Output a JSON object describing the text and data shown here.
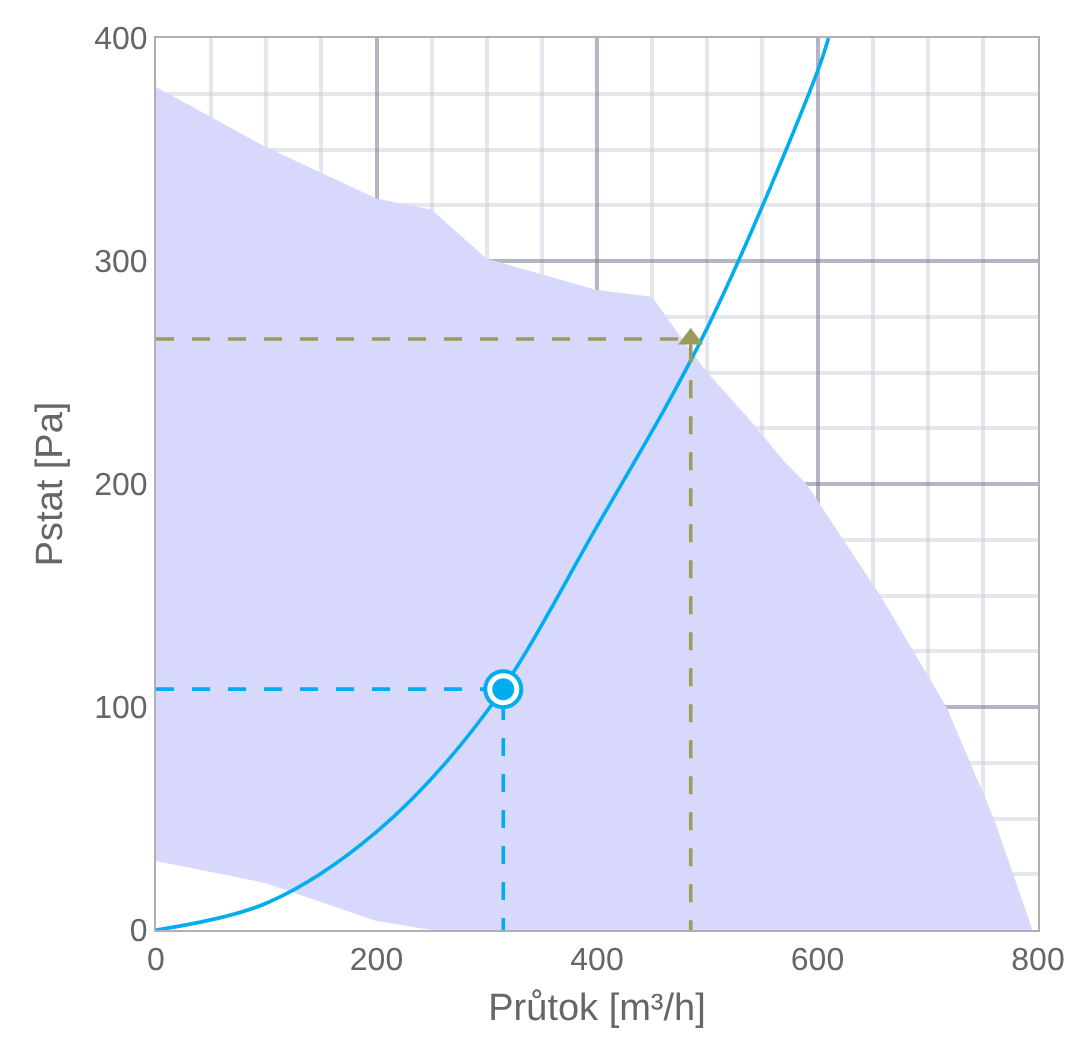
{
  "chart_data": {
    "type": "line",
    "xlabel": "Průtok [m³/h]",
    "ylabel": "Pstat [Pa]",
    "xlim": [
      0,
      800
    ],
    "ylim": [
      0,
      400
    ],
    "xticks": [
      0,
      {
        "value": 50,
        "label": null
      },
      {
        "value": 100,
        "label": null
      },
      {
        "value": 150,
        "label": null
      },
      200,
      {
        "value": 250,
        "label": null
      },
      {
        "value": 300,
        "label": null
      },
      {
        "value": 350,
        "label": null
      },
      400,
      {
        "value": 450,
        "label": null
      },
      {
        "value": 500,
        "label": null
      },
      {
        "value": 550,
        "label": null
      },
      600,
      {
        "value": 650,
        "label": null
      },
      {
        "value": 700,
        "label": null
      },
      {
        "value": 750,
        "label": null
      },
      800
    ],
    "yticks": [
      0,
      {
        "value": 25,
        "label": null
      },
      {
        "value": 50,
        "label": null
      },
      {
        "value": 75,
        "label": null
      },
      100,
      {
        "value": 125,
        "label": null
      },
      {
        "value": 150,
        "label": null
      },
      {
        "value": 175,
        "label": null
      },
      200,
      {
        "value": 225,
        "label": null
      },
      {
        "value": 250,
        "label": null
      },
      {
        "value": 275,
        "label": null
      },
      300,
      {
        "value": 325,
        "label": null
      },
      {
        "value": 350,
        "label": null
      },
      {
        "value": 375,
        "label": null
      },
      400
    ],
    "grid": true,
    "series": [
      {
        "type": "area",
        "color": "#d8d8fc",
        "x": [
          0,
          100,
          200,
          250,
          300,
          400,
          450,
          480,
          500,
          540,
          570,
          590,
          657,
          717,
          760,
          795
        ],
        "values": [
          378,
          351,
          328,
          323,
          301,
          287,
          284,
          263,
          250,
          228,
          210,
          200,
          150,
          100,
          50,
          0
        ]
      },
      {
        "type": "area",
        "color": "#ffffff",
        "x": [
          0,
          100,
          200,
          250
        ],
        "values": [
          31,
          21,
          4,
          0
        ]
      },
      {
        "type": "line",
        "color": "#00aeef",
        "marker": "none",
        "line_style": "solid",
        "x": [
          0,
          100,
          200,
          300,
          400,
          500,
          600,
          610
        ],
        "values": [
          0,
          12,
          44,
          98,
          181,
          270,
          385,
          400
        ]
      },
      {
        "type": "line",
        "color": "#00aeef",
        "marker": "none",
        "line_style": "dashed",
        "x": [
          0,
          315,
          315
        ],
        "values": [
          108,
          108,
          0
        ]
      },
      {
        "type": "line",
        "color": "#9a9c5a",
        "marker": "none",
        "line_style": "dashed",
        "x": [
          0,
          485,
          485
        ],
        "values": [
          265,
          265,
          0
        ]
      },
      {
        "type": "scatter",
        "color": "#00aeef",
        "marker": "circle",
        "x": [
          315
        ],
        "values": [
          108
        ]
      },
      {
        "type": "scatter",
        "color": "#9a9c5a",
        "marker": "triangle",
        "x": [
          485
        ],
        "values": [
          265
        ]
      }
    ]
  }
}
